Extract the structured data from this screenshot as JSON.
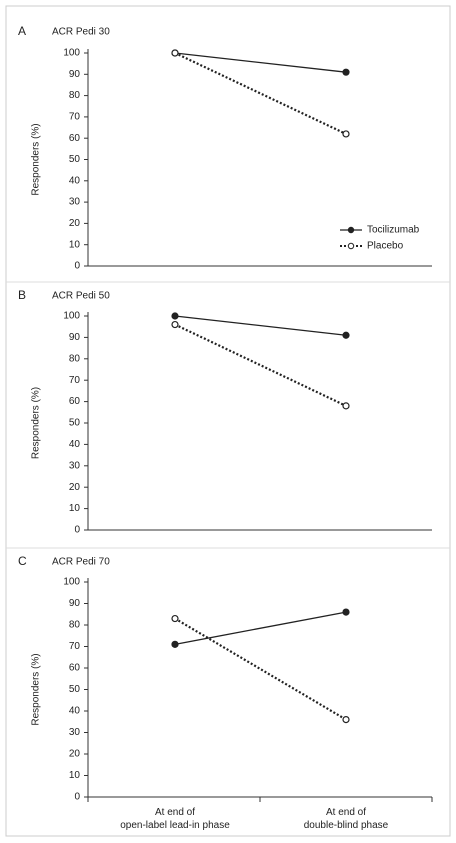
{
  "chart_data": [
    {
      "type": "line",
      "label": "A",
      "title": "ACR Pedi 30",
      "ylabel": "Responders (%)",
      "ylim": [
        0,
        100
      ],
      "yticks": [
        0,
        10,
        20,
        30,
        40,
        50,
        60,
        70,
        80,
        90,
        100
      ],
      "series": [
        {
          "name": "Tocilizumab",
          "color": "#222",
          "marker": "filled",
          "line": "solid",
          "values": [
            100,
            91
          ]
        },
        {
          "name": "Placebo",
          "color": "#222",
          "marker": "open",
          "line": "dotted",
          "values": [
            100,
            62
          ]
        }
      ],
      "legend": "lower right"
    },
    {
      "type": "line",
      "label": "B",
      "title": "ACR Pedi 50",
      "ylabel": "Responders (%)",
      "ylim": [
        0,
        100
      ],
      "yticks": [
        0,
        10,
        20,
        30,
        40,
        50,
        60,
        70,
        80,
        90,
        100
      ],
      "series": [
        {
          "color": "#222",
          "marker": "filled",
          "line": "solid",
          "values": [
            100,
            91
          ]
        },
        {
          "color": "#222",
          "marker": "open",
          "line": "dotted",
          "values": [
            96,
            58
          ]
        }
      ]
    },
    {
      "type": "line",
      "label": "C",
      "title": "ACR Pedi 70",
      "ylabel": "Responders (%)",
      "categories": [
        "At end of\nopen-label lead-in phase",
        "At end of\ndouble-blind phase"
      ],
      "ylim": [
        0,
        100
      ],
      "yticks": [
        0,
        10,
        20,
        30,
        40,
        50,
        60,
        70,
        80,
        90,
        100
      ],
      "series": [
        {
          "color": "#222",
          "marker": "filled",
          "line": "solid",
          "values": [
            71,
            86
          ]
        },
        {
          "color": "#222",
          "marker": "open",
          "line": "dotted",
          "values": [
            83,
            36
          ]
        }
      ]
    }
  ]
}
